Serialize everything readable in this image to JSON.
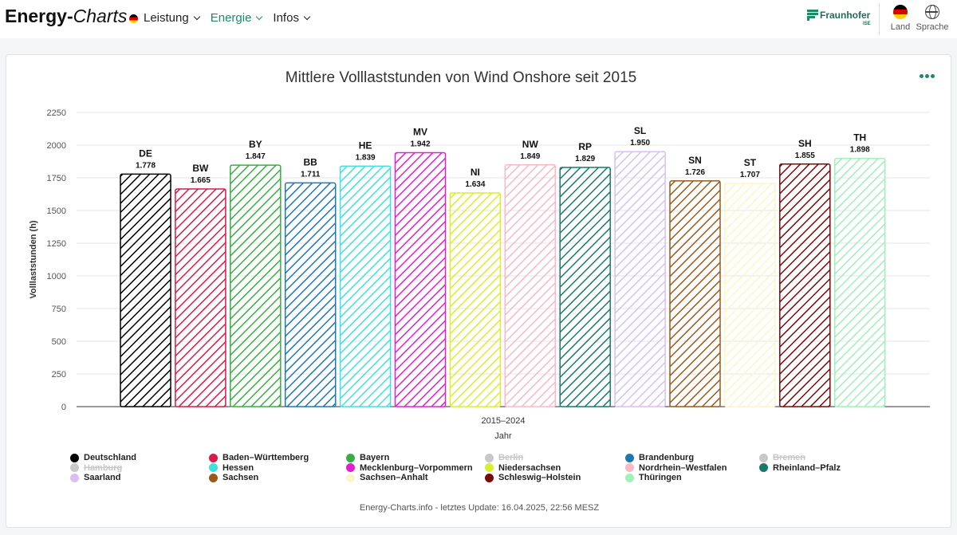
{
  "header": {
    "logo_bold": "Energy-",
    "logo_italic": "Charts",
    "nav": [
      {
        "label": "Leistung",
        "active": false
      },
      {
        "label": "Energie",
        "active": true
      },
      {
        "label": "Infos",
        "active": false
      }
    ],
    "fraunhofer": "Fraunhofer",
    "fraunhofer_sub": "ISE",
    "country_label": "Land",
    "language_label": "Sprache"
  },
  "chart_data": {
    "type": "bar",
    "title": "Mittlere Volllaststunden von Wind Onshore seit 2015",
    "xlabel": "Jahr",
    "ylabel": "Volllaststunden (h)",
    "category": "2015–2024",
    "ylim": [
      0,
      2250
    ],
    "yticks": [
      0,
      250,
      500,
      750,
      1000,
      1250,
      1500,
      1750,
      2000,
      2250
    ],
    "grid": true,
    "series": [
      {
        "abbr": "DE",
        "name": "Deutschland",
        "value": 1778,
        "label": "1.778",
        "color": "#000000"
      },
      {
        "abbr": "BW",
        "name": "Baden–Württemberg",
        "value": 1665,
        "label": "1.665",
        "color": "#d81b4a"
      },
      {
        "abbr": "BY",
        "name": "Bayern",
        "value": 1847,
        "label": "1.847",
        "color": "#3aae44"
      },
      {
        "abbr": "BB",
        "name": "Brandenburg",
        "value": 1711,
        "label": "1.711",
        "color": "#1f77b4"
      },
      {
        "abbr": "HE",
        "name": "Hessen",
        "value": 1839,
        "label": "1.839",
        "color": "#40e0e0"
      },
      {
        "abbr": "MV",
        "name": "Mecklenburg–Vorpommern",
        "value": 1942,
        "label": "1.942",
        "color": "#e020d0"
      },
      {
        "abbr": "NI",
        "name": "Niedersachsen",
        "value": 1634,
        "label": "1.634",
        "color": "#d8ee30"
      },
      {
        "abbr": "NW",
        "name": "Nordrhein–Westfalen",
        "value": 1849,
        "label": "1.849",
        "color": "#f8b8c8"
      },
      {
        "abbr": "RP",
        "name": "Rheinland–Pfalz",
        "value": 1829,
        "label": "1.829",
        "color": "#1a7a6a"
      },
      {
        "abbr": "SL",
        "name": "Saarland",
        "value": 1950,
        "label": "1.950",
        "color": "#d8c0f0"
      },
      {
        "abbr": "SN",
        "name": "Sachsen",
        "value": 1726,
        "label": "1.726",
        "color": "#9a5a1a"
      },
      {
        "abbr": "ST",
        "name": "Sachsen–Anhalt",
        "value": 1707,
        "label": "1.707",
        "color": "#fbf6c8"
      },
      {
        "abbr": "SH",
        "name": "Schleswig–Holstein",
        "value": 1855,
        "label": "1.855",
        "color": "#7a0a0a"
      },
      {
        "abbr": "TH",
        "name": "Thüringen",
        "value": 1898,
        "label": "1.898",
        "color": "#a0f0b8"
      }
    ],
    "legend": [
      {
        "name": "Deutschland",
        "color": "#000000",
        "disabled": false
      },
      {
        "name": "Baden–Württemberg",
        "color": "#d81b4a",
        "disabled": false
      },
      {
        "name": "Bayern",
        "color": "#3aae44",
        "disabled": false
      },
      {
        "name": "Berlin",
        "color": "#c8c8c8",
        "disabled": true
      },
      {
        "name": "Brandenburg",
        "color": "#1f77b4",
        "disabled": false
      },
      {
        "name": "Bremen",
        "color": "#c8c8c8",
        "disabled": true
      },
      {
        "name": "Hamburg",
        "color": "#c8c8c8",
        "disabled": true
      },
      {
        "name": "Hessen",
        "color": "#40e0e0",
        "disabled": false
      },
      {
        "name": "Mecklenburg–Vorpommern",
        "color": "#e020d0",
        "disabled": false
      },
      {
        "name": "Niedersachsen",
        "color": "#d8ee30",
        "disabled": false
      },
      {
        "name": "Nordrhein–Westfalen",
        "color": "#f8b8c8",
        "disabled": false
      },
      {
        "name": "Rheinland–Pfalz",
        "color": "#1a7a6a",
        "disabled": false
      },
      {
        "name": "Saarland",
        "color": "#d8c0f0",
        "disabled": false
      },
      {
        "name": "Sachsen",
        "color": "#9a5a1a",
        "disabled": false
      },
      {
        "name": "Sachsen–Anhalt",
        "color": "#fbf6c8",
        "disabled": false
      },
      {
        "name": "Schleswig–Holstein",
        "color": "#7a0a0a",
        "disabled": false
      },
      {
        "name": "Thüringen",
        "color": "#a0f0b8",
        "disabled": false
      }
    ]
  },
  "footer": "Energy-Charts.info - letztes Update: 16.04.2025, 22:56 MESZ"
}
